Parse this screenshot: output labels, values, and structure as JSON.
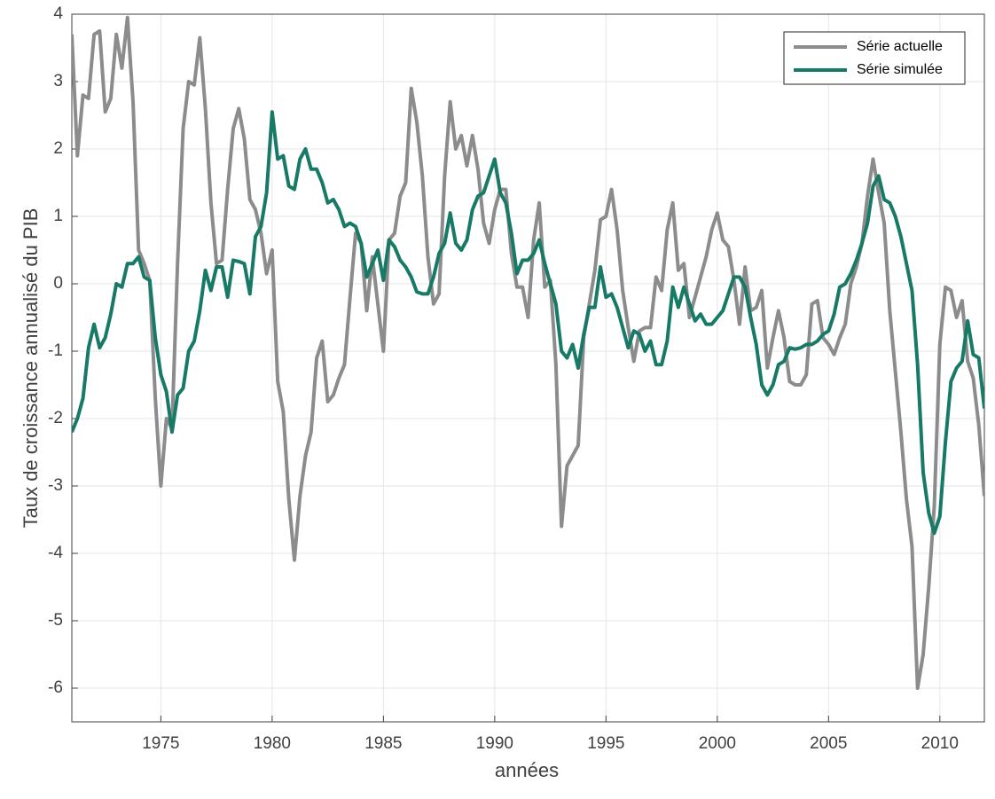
{
  "chart_data": {
    "type": "line",
    "x_label": "années",
    "y_label": "Taux de croissance annualisé du PIB",
    "x": [
      1971,
      1971.25,
      1971.5,
      1971.75,
      1972,
      1972.25,
      1972.5,
      1972.75,
      1973,
      1973.25,
      1973.5,
      1973.75,
      1974,
      1974.25,
      1974.5,
      1974.75,
      1975,
      1975.25,
      1975.5,
      1975.75,
      1976,
      1976.25,
      1976.5,
      1976.75,
      1977,
      1977.25,
      1977.5,
      1977.75,
      1978,
      1978.25,
      1978.5,
      1978.75,
      1979,
      1979.25,
      1979.5,
      1979.75,
      1980,
      1980.25,
      1980.5,
      1980.75,
      1981,
      1981.25,
      1981.5,
      1981.75,
      1982,
      1982.25,
      1982.5,
      1982.75,
      1983,
      1983.25,
      1983.5,
      1983.75,
      1984,
      1984.25,
      1984.5,
      1984.75,
      1985,
      1985.25,
      1985.5,
      1985.75,
      1986,
      1986.25,
      1986.5,
      1986.75,
      1987,
      1987.25,
      1987.5,
      1987.75,
      1988,
      1988.25,
      1988.5,
      1988.75,
      1989,
      1989.25,
      1989.5,
      1989.75,
      1990,
      1990.25,
      1990.5,
      1990.75,
      1991,
      1991.25,
      1991.5,
      1991.75,
      1992,
      1992.25,
      1992.5,
      1992.75,
      1993,
      1993.25,
      1993.5,
      1993.75,
      1994,
      1994.25,
      1994.5,
      1994.75,
      1995,
      1995.25,
      1995.5,
      1995.75,
      1996,
      1996.25,
      1996.5,
      1996.75,
      1997,
      1997.25,
      1997.5,
      1997.75,
      1998,
      1998.25,
      1998.5,
      1998.75,
      1999,
      1999.25,
      1999.5,
      1999.75,
      2000,
      2000.25,
      2000.5,
      2000.75,
      2001,
      2001.25,
      2001.5,
      2001.75,
      2002,
      2002.25,
      2002.5,
      2002.75,
      2003,
      2003.25,
      2003.5,
      2003.75,
      2004,
      2004.25,
      2004.5,
      2004.75,
      2005,
      2005.25,
      2005.5,
      2005.75,
      2006,
      2006.25,
      2006.5,
      2006.75,
      2007,
      2007.25,
      2007.5,
      2007.75,
      2008,
      2008.25,
      2008.5,
      2008.75,
      2009,
      2009.25,
      2009.5,
      2009.75,
      2010,
      2010.25,
      2010.5,
      2010.75,
      2011,
      2011.25,
      2011.5,
      2011.75,
      2012
    ],
    "series": [
      {
        "name": "Série actuelle",
        "color": "#8c8c8c",
        "values": [
          3.7,
          1.9,
          2.8,
          2.75,
          3.7,
          3.75,
          2.55,
          2.75,
          3.7,
          3.2,
          3.95,
          2.7,
          0.5,
          0.3,
          0.05,
          -1.7,
          -3.0,
          -2.0,
          -2.15,
          0.3,
          2.3,
          3.0,
          2.95,
          3.65,
          2.6,
          1.2,
          0.3,
          0.35,
          1.4,
          2.3,
          2.6,
          2.15,
          1.25,
          1.1,
          0.75,
          0.15,
          0.5,
          -1.45,
          -1.9,
          -3.2,
          -4.1,
          -3.15,
          -2.55,
          -2.2,
          -1.1,
          -0.85,
          -1.75,
          -1.65,
          -1.4,
          -1.2,
          -0.2,
          0.75,
          0.6,
          -0.4,
          0.4,
          -0.3,
          -1.0,
          0.65,
          0.75,
          1.3,
          1.5,
          2.9,
          2.4,
          1.6,
          0.4,
          -0.3,
          -0.15,
          1.6,
          2.7,
          2.0,
          2.2,
          1.75,
          2.2,
          1.7,
          0.9,
          0.6,
          1.1,
          1.4,
          1.4,
          0.45,
          -0.05,
          -0.05,
          -0.5,
          0.65,
          1.2,
          -0.05,
          0.05,
          -1.2,
          -3.6,
          -2.7,
          -2.55,
          -2.4,
          -0.8,
          -0.3,
          0.2,
          0.95,
          1.0,
          1.4,
          0.8,
          -0.1,
          -0.65,
          -1.15,
          -0.7,
          -0.65,
          -0.65,
          0.1,
          -0.1,
          0.8,
          1.2,
          0.2,
          0.3,
          -0.5,
          -0.2,
          0.1,
          0.4,
          0.8,
          1.05,
          0.65,
          0.55,
          0.05,
          -0.6,
          0.25,
          -0.4,
          -0.35,
          -0.1,
          -1.25,
          -0.8,
          -0.4,
          -0.8,
          -1.45,
          -1.5,
          -1.5,
          -1.35,
          -0.3,
          -0.25,
          -0.8,
          -0.9,
          -1.05,
          -0.8,
          -0.6,
          0.0,
          0.25,
          0.6,
          1.3,
          1.85,
          1.35,
          0.9,
          -0.4,
          -1.3,
          -2.2,
          -3.2,
          -3.9,
          -6.0,
          -5.5,
          -4.5,
          -3.3,
          -0.9,
          -0.05,
          -0.1,
          -0.5,
          -0.25,
          -1.15,
          -1.4,
          -2.1,
          -3.15
        ]
      },
      {
        "name": "Série simulée",
        "color": "#167a66",
        "values": [
          -2.2,
          -2.0,
          -1.7,
          -0.95,
          -0.6,
          -0.95,
          -0.8,
          -0.45,
          0.0,
          -0.05,
          0.3,
          0.3,
          0.4,
          0.1,
          0.05,
          -0.8,
          -1.35,
          -1.6,
          -2.2,
          -1.65,
          -1.55,
          -1.0,
          -0.85,
          -0.4,
          0.2,
          -0.1,
          0.25,
          0.25,
          -0.2,
          0.35,
          0.33,
          0.3,
          -0.15,
          0.7,
          0.85,
          1.35,
          2.55,
          1.85,
          1.9,
          1.45,
          1.4,
          1.85,
          2.0,
          1.7,
          1.7,
          1.5,
          1.2,
          1.25,
          1.1,
          0.85,
          0.9,
          0.85,
          0.6,
          0.1,
          0.3,
          0.5,
          0.05,
          0.65,
          0.55,
          0.35,
          0.25,
          0.1,
          -0.12,
          -0.15,
          -0.15,
          0.1,
          0.45,
          0.6,
          1.05,
          0.6,
          0.5,
          0.65,
          1.1,
          1.3,
          1.35,
          1.6,
          1.85,
          1.35,
          1.2,
          0.75,
          0.15,
          0.35,
          0.35,
          0.45,
          0.65,
          0.3,
          0.0,
          -0.3,
          -1.0,
          -1.1,
          -0.9,
          -1.25,
          -0.75,
          -0.35,
          -0.35,
          0.25,
          -0.2,
          -0.15,
          -0.35,
          -0.65,
          -0.95,
          -0.7,
          -0.75,
          -1.0,
          -0.85,
          -1.2,
          -1.2,
          -0.85,
          -0.05,
          -0.35,
          -0.05,
          -0.3,
          -0.55,
          -0.45,
          -0.6,
          -0.6,
          -0.5,
          -0.4,
          -0.15,
          0.1,
          0.1,
          -0.05,
          -0.5,
          -0.9,
          -1.5,
          -1.65,
          -1.5,
          -1.2,
          -1.15,
          -0.95,
          -0.97,
          -0.95,
          -0.9,
          -0.9,
          -0.85,
          -0.75,
          -0.7,
          -0.45,
          -0.05,
          0.0,
          0.15,
          0.35,
          0.6,
          0.9,
          1.45,
          1.6,
          1.25,
          1.2,
          1.0,
          0.7,
          0.3,
          -0.1,
          -1.2,
          -2.8,
          -3.4,
          -3.7,
          -3.45,
          -2.35,
          -1.45,
          -1.25,
          -1.15,
          -0.55,
          -1.05,
          -1.1,
          -1.85
        ]
      }
    ],
    "xlim": [
      1971,
      2012
    ],
    "ylim": [
      -6.5,
      4
    ],
    "xticks": [
      1975,
      1980,
      1985,
      1990,
      1995,
      2000,
      2005,
      2010
    ],
    "yticks": [
      -6,
      -5,
      -4,
      -3,
      -2,
      -1,
      0,
      1,
      2,
      3,
      4
    ],
    "grid": true,
    "legend": "upper right"
  }
}
